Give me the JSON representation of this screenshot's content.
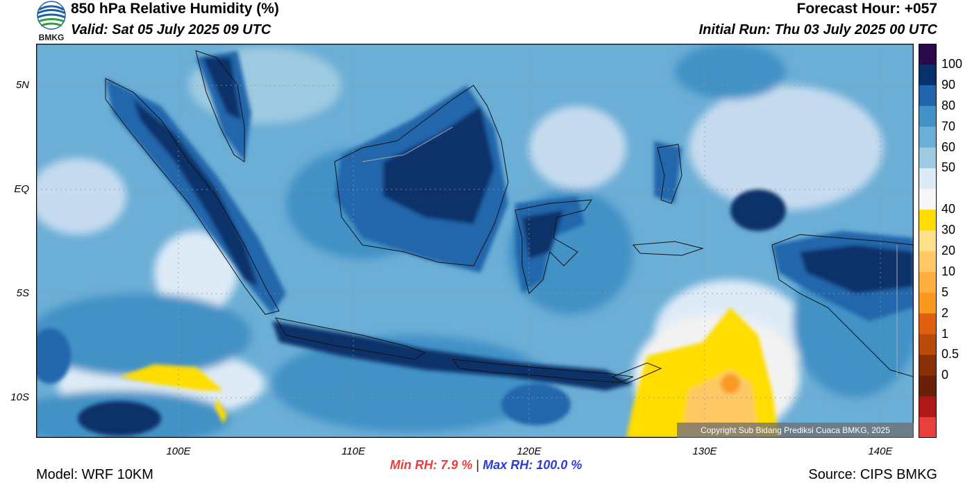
{
  "header": {
    "title": "850 hPa Relative Humidity (%)",
    "valid": "Valid: Sat 05 July 2025 09 UTC",
    "forecast_hour": "Forecast Hour: +057",
    "initial_run": "Initial Run: Thu 03 July 2025 00 UTC"
  },
  "logo": {
    "text": "BMKG",
    "icon": "bmkg-logo-icon"
  },
  "map": {
    "lat_labels": [
      "5N",
      "EQ",
      "5S",
      "10S"
    ],
    "lon_labels": [
      "100E",
      "110E",
      "120E",
      "130E",
      "140E"
    ],
    "copyright": "Copyright Sub Bidang Prediksi Cuaca BMKG, 2025"
  },
  "colorbar": {
    "labels": [
      "100",
      "90",
      "80",
      "70",
      "60",
      "50",
      "40",
      "30",
      "20",
      "10",
      "5",
      "2",
      "1",
      "0.5",
      "0"
    ],
    "colors": [
      "#2a0a4a",
      "#08306b",
      "#2166ac",
      "#4292c6",
      "#6baed6",
      "#9ecae1",
      "#deebf7",
      "#f7f7f7",
      "#ffdd00",
      "#ffe08a",
      "#ffc966",
      "#fdb040",
      "#f99a20",
      "#e06010",
      "#b84a0a",
      "#8a3008",
      "#6a200a",
      "#b01818",
      "#e8403c"
    ]
  },
  "stats": {
    "min": "Min RH:   7.9 %",
    "sep": "|",
    "max": "Max RH: 100.0 %"
  },
  "footer": {
    "model": "Model: WRF 10KM",
    "source": "Source: CIPS BMKG"
  }
}
